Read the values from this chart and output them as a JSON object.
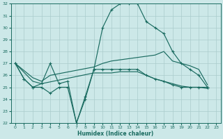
{
  "xlabel": "Humidex (Indice chaleur)",
  "bg_color": "#cce8e8",
  "line_color": "#1a6b60",
  "grid_color": "#aacccc",
  "ylim": [
    22,
    32
  ],
  "xlim": [
    -0.5,
    23.5
  ],
  "yticks": [
    22,
    23,
    24,
    25,
    26,
    27,
    28,
    29,
    30,
    31,
    32
  ],
  "xticks": [
    0,
    1,
    2,
    3,
    4,
    5,
    6,
    7,
    8,
    9,
    10,
    11,
    12,
    13,
    14,
    15,
    16,
    17,
    18,
    19,
    20,
    21,
    22,
    23
  ],
  "line1_x": [
    0,
    1,
    2,
    3,
    4,
    5,
    6,
    7,
    8,
    9,
    10,
    11,
    12,
    13,
    14,
    15,
    16,
    17,
    18,
    19,
    20,
    21,
    22
  ],
  "line1_y": [
    27,
    25.7,
    25.0,
    25.0,
    24.5,
    25.0,
    25.0,
    22.0,
    24.0,
    26.5,
    30.0,
    31.5,
    32.0,
    32.0,
    32.0,
    30.5,
    30.0,
    29.5,
    28.0,
    27.0,
    26.5,
    26.0,
    25.0
  ],
  "line2_x": [
    0,
    1,
    2,
    3,
    4,
    5,
    6,
    7,
    8,
    9,
    10,
    11,
    12,
    13,
    14,
    15,
    16,
    17,
    18,
    19,
    20,
    21,
    22
  ],
  "line2_y": [
    27,
    25.7,
    25.0,
    25.3,
    27.0,
    25.3,
    25.5,
    22.0,
    24.2,
    26.5,
    26.5,
    26.5,
    26.5,
    26.5,
    26.5,
    26.0,
    25.7,
    25.5,
    25.2,
    25.0,
    25.0,
    25.0,
    25.0
  ],
  "line3_x": [
    0,
    2,
    3,
    4,
    9,
    10,
    11,
    12,
    13,
    14,
    15,
    16,
    17,
    18,
    19,
    20,
    21,
    22
  ],
  "line3_y": [
    27,
    25.8,
    25.5,
    26.0,
    26.7,
    27.0,
    27.2,
    27.3,
    27.4,
    27.5,
    27.6,
    27.7,
    28.0,
    27.2,
    27.0,
    26.8,
    26.5,
    25.2
  ],
  "line4_x": [
    0,
    2,
    3,
    9,
    10,
    11,
    12,
    13,
    14,
    15,
    16,
    17,
    18,
    19,
    20,
    21,
    22
  ],
  "line4_y": [
    27,
    25.5,
    25.3,
    26.2,
    26.2,
    26.2,
    26.3,
    26.3,
    26.3,
    26.0,
    25.7,
    25.5,
    25.3,
    25.1,
    25.0,
    25.0,
    24.9
  ]
}
